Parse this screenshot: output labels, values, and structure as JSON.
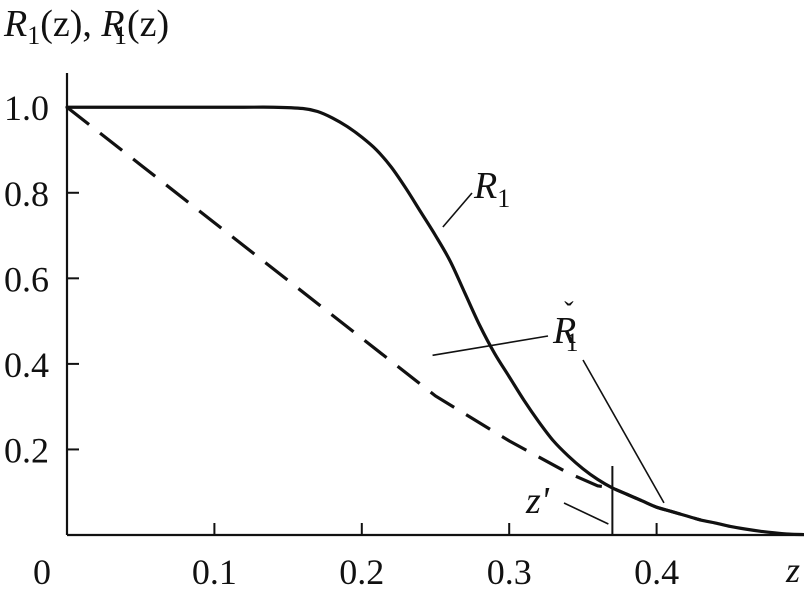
{
  "chart_data": {
    "type": "line",
    "ylabel": "R₁(z), Rˇ₁(z)",
    "ylabel_parts": {
      "first_symbol": "R",
      "first_sub": "1",
      "first_arg": "(z), ",
      "second_symbol": "R",
      "second_accent": "ˇ",
      "second_sub": "1",
      "second_arg": "(z)"
    },
    "xlabel": "z",
    "xlim": [
      0,
      0.5
    ],
    "ylim": [
      0,
      1.08
    ],
    "x_ticks": [
      {
        "value": 0,
        "label": "0"
      },
      {
        "value": 0.1,
        "label": "0.1"
      },
      {
        "value": 0.2,
        "label": "0.2"
      },
      {
        "value": 0.3,
        "label": "0.3"
      },
      {
        "value": 0.4,
        "label": "0.4"
      }
    ],
    "y_ticks": [
      {
        "value": 0.2,
        "label": "0.2"
      },
      {
        "value": 0.4,
        "label": "0.4"
      },
      {
        "value": 0.6,
        "label": "0.6"
      },
      {
        "value": 0.8,
        "label": "0.8"
      },
      {
        "value": 1.0,
        "label": "1.0"
      }
    ],
    "series": [
      {
        "name": "R1",
        "style": "solid",
        "x": [
          0,
          0.05,
          0.1,
          0.12,
          0.14,
          0.16,
          0.17,
          0.18,
          0.19,
          0.2,
          0.21,
          0.22,
          0.23,
          0.24,
          0.25,
          0.26,
          0.27,
          0.28,
          0.29,
          0.3,
          0.31,
          0.32,
          0.33,
          0.34,
          0.35,
          0.36,
          0.37,
          0.38,
          0.39,
          0.4,
          0.41,
          0.42,
          0.43,
          0.44,
          0.45,
          0.46,
          0.47,
          0.48,
          0.49,
          0.5
        ],
        "y": [
          1.0,
          1.0,
          1.0,
          1.0,
          1.0,
          0.997,
          0.99,
          0.975,
          0.955,
          0.93,
          0.9,
          0.86,
          0.81,
          0.755,
          0.7,
          0.64,
          0.565,
          0.49,
          0.425,
          0.37,
          0.315,
          0.265,
          0.22,
          0.185,
          0.155,
          0.13,
          0.11,
          0.095,
          0.08,
          0.065,
          0.055,
          0.045,
          0.035,
          0.028,
          0.02,
          0.014,
          0.009,
          0.005,
          0.002,
          0.001
        ]
      },
      {
        "name": "R1ˇ",
        "style": "dashed",
        "x": [
          0,
          0.05,
          0.1,
          0.15,
          0.2,
          0.25,
          0.3,
          0.34,
          0.36,
          0.37,
          0.38,
          0.39,
          0.4,
          0.42,
          0.43
        ],
        "y": [
          1.0,
          0.865,
          0.73,
          0.595,
          0.46,
          0.325,
          0.22,
          0.145,
          0.115,
          0.11,
          0.095,
          0.08,
          0.065,
          0.045,
          0.035
        ]
      }
    ],
    "annotations": [
      {
        "id": "r1",
        "symbol": "R",
        "sub": "1",
        "accent": "",
        "anchor_x": 0.255,
        "anchor_y": 0.72
      },
      {
        "id": "r1check",
        "symbol": "R",
        "sub": "1",
        "accent": "ˇ",
        "anchors": [
          [
            0.248,
            0.42
          ],
          [
            0.405,
            0.075
          ]
        ]
      },
      {
        "id": "zprime",
        "text": "z'",
        "x": 0.37
      }
    ]
  }
}
